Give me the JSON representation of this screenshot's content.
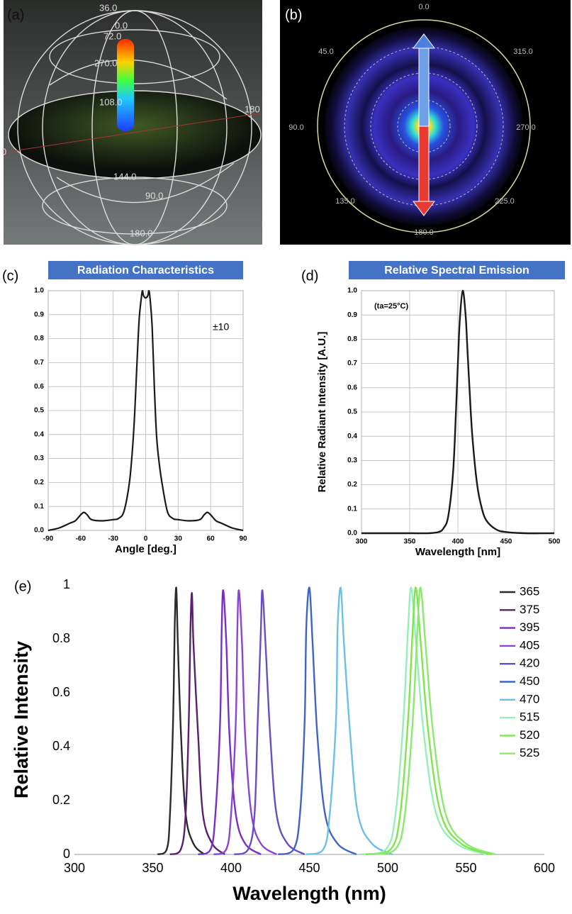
{
  "image_a": {
    "panel_label": "(a)",
    "labels": [
      "36.0",
      "0.0",
      "72.0",
      "270.0",
      "108.0",
      "180",
      "0",
      "144.0",
      "90.0",
      "180.0"
    ]
  },
  "image_b": {
    "panel_label": "(b)",
    "labels": [
      "0.0",
      "45.0",
      "315.0",
      "90.0",
      "270.0",
      "135.0",
      "225.0",
      "180.0"
    ]
  },
  "chart_data": [
    {
      "type": "line",
      "panel_label": "(c)",
      "title": "Radiation Characteristics",
      "xlabel": "Angle [deg.]",
      "annotation": "±10",
      "x": [
        -90,
        -80,
        -70,
        -65,
        -60,
        -57,
        -54,
        -50,
        -40,
        -30,
        -25,
        -20,
        -15,
        -12,
        -10,
        -8,
        -6,
        -4,
        -3,
        -2,
        0,
        2,
        3,
        4,
        6,
        8,
        10,
        12,
        15,
        20,
        25,
        30,
        40,
        50,
        54,
        57,
        60,
        65,
        70,
        80,
        90
      ],
      "values": [
        0,
        0.01,
        0.03,
        0.04,
        0.065,
        0.075,
        0.065,
        0.045,
        0.04,
        0.045,
        0.05,
        0.08,
        0.2,
        0.35,
        0.5,
        0.7,
        0.88,
        0.97,
        1.0,
        0.98,
        0.97,
        0.98,
        1.0,
        0.97,
        0.85,
        0.6,
        0.4,
        0.3,
        0.2,
        0.08,
        0.05,
        0.045,
        0.04,
        0.045,
        0.065,
        0.075,
        0.065,
        0.04,
        0.03,
        0.01,
        0
      ],
      "color": "#1a1a1a",
      "xlim": [
        -90,
        90
      ],
      "xticks": [
        -90,
        -60,
        -30,
        0,
        30,
        60,
        90
      ],
      "ylim": [
        0,
        1
      ],
      "yticks": [
        {
          "value": 0,
          "label": "0.0"
        },
        0.1,
        0.2,
        0.3,
        0.4,
        0.5,
        0.6,
        0.7,
        0.8,
        0.9,
        {
          "value": 1,
          "label": "1.0"
        }
      ],
      "grid": true
    },
    {
      "type": "line",
      "panel_label": "(d)",
      "title": "Relative Spectral Emission",
      "xlabel": "Wavelength [nm]",
      "ylabel": "Relative Radiant Intensity [A.U.]",
      "annotation": "(ta=25°C)",
      "x": [
        300,
        350,
        370,
        380,
        385,
        390,
        395,
        398,
        400,
        402,
        405,
        408,
        410,
        412,
        415,
        420,
        425,
        430,
        440,
        450,
        470,
        500
      ],
      "values": [
        0,
        0,
        0,
        0.005,
        0.02,
        0.07,
        0.25,
        0.5,
        0.7,
        0.88,
        1.0,
        0.9,
        0.75,
        0.6,
        0.4,
        0.2,
        0.1,
        0.05,
        0.015,
        0.005,
        0,
        0
      ],
      "color": "#1a1a1a",
      "xlim": [
        300,
        500
      ],
      "xticks": [
        300,
        350,
        400,
        450,
        500
      ],
      "ylim": [
        0,
        1
      ],
      "yticks": [
        {
          "value": 0,
          "label": "0.0"
        },
        0.1,
        0.2,
        0.3,
        0.4,
        0.5,
        0.6,
        0.7,
        0.8,
        0.9,
        {
          "value": 1,
          "label": "1.0"
        }
      ],
      "grid": true
    },
    {
      "type": "line",
      "panel_label": "(e)",
      "xlabel": "Wavelength (nm)",
      "ylabel": "Relative Intensity",
      "xlim": [
        300,
        600
      ],
      "xticks": [
        300,
        350,
        400,
        450,
        500,
        550,
        600
      ],
      "ylim": [
        0,
        1
      ],
      "yticks": [
        0,
        0.2,
        0.4,
        0.6,
        0.8,
        1
      ],
      "grid": false,
      "series": [
        {
          "name": "365",
          "color": "#2b2b2b",
          "x": [
            353,
            359,
            361,
            363,
            364,
            365,
            366,
            368,
            371,
            376,
            383
          ],
          "values": [
            0,
            0.02,
            0.15,
            0.5,
            0.84,
            0.99,
            0.79,
            0.45,
            0.15,
            0.04,
            0
          ]
        },
        {
          "name": "375",
          "color": "#5b1f6e",
          "x": [
            361,
            368,
            371,
            373,
            374,
            375,
            376,
            379,
            382,
            388,
            396
          ],
          "values": [
            0,
            0.02,
            0.15,
            0.49,
            0.82,
            0.97,
            0.78,
            0.44,
            0.15,
            0.04,
            0
          ]
        },
        {
          "name": "395",
          "color": "#7a2ec8",
          "x": [
            379,
            387,
            390,
            393,
            394,
            395,
            397,
            399,
            403,
            409,
            419
          ],
          "values": [
            0,
            0.02,
            0.15,
            0.49,
            0.83,
            0.98,
            0.78,
            0.44,
            0.15,
            0.04,
            0
          ]
        },
        {
          "name": "405",
          "color": "#8c45d2",
          "x": [
            389,
            397,
            400,
            403,
            404,
            405,
            407,
            409,
            413,
            419,
            429
          ],
          "values": [
            0,
            0.02,
            0.15,
            0.49,
            0.83,
            0.98,
            0.78,
            0.44,
            0.15,
            0.04,
            0
          ]
        },
        {
          "name": "420",
          "color": "#6a4cc8",
          "x": [
            402,
            411,
            415,
            417,
            419,
            420,
            422,
            425,
            429,
            436,
            447
          ],
          "values": [
            0,
            0.02,
            0.15,
            0.49,
            0.83,
            0.98,
            0.78,
            0.44,
            0.15,
            0.04,
            0
          ]
        },
        {
          "name": "450",
          "color": "#3f63c9",
          "x": [
            430,
            440,
            444,
            447,
            448,
            450,
            452,
            455,
            460,
            468,
            480
          ],
          "values": [
            0,
            0.02,
            0.15,
            0.5,
            0.84,
            0.99,
            0.79,
            0.45,
            0.15,
            0.04,
            0
          ]
        },
        {
          "name": "470",
          "color": "#6cc0e8",
          "x": [
            448,
            459,
            463,
            467,
            468,
            470,
            472,
            476,
            481,
            490,
            503
          ],
          "values": [
            0,
            0.02,
            0.15,
            0.5,
            0.84,
            0.99,
            0.79,
            0.45,
            0.15,
            0.04,
            0
          ]
        },
        {
          "name": "515",
          "color": "#98eebb",
          "x": [
            483,
            499,
            505,
            510,
            513,
            515,
            518,
            523,
            531,
            544,
            563
          ],
          "values": [
            0,
            0.02,
            0.15,
            0.5,
            0.84,
            0.99,
            0.79,
            0.45,
            0.15,
            0.04,
            0
          ]
        },
        {
          "name": "520",
          "color": "#7ee64a",
          "x": [
            486,
            502,
            508,
            513,
            516,
            518,
            521,
            526,
            534,
            547,
            566
          ],
          "values": [
            0,
            0.02,
            0.15,
            0.5,
            0.84,
            0.99,
            0.79,
            0.45,
            0.15,
            0.04,
            0
          ]
        },
        {
          "name": "525",
          "color": "#8be870",
          "x": [
            489,
            505,
            511,
            516,
            519,
            521,
            524,
            529,
            537,
            550,
            569
          ],
          "values": [
            0,
            0.02,
            0.15,
            0.5,
            0.84,
            0.99,
            0.79,
            0.45,
            0.15,
            0.04,
            0
          ]
        }
      ]
    }
  ]
}
